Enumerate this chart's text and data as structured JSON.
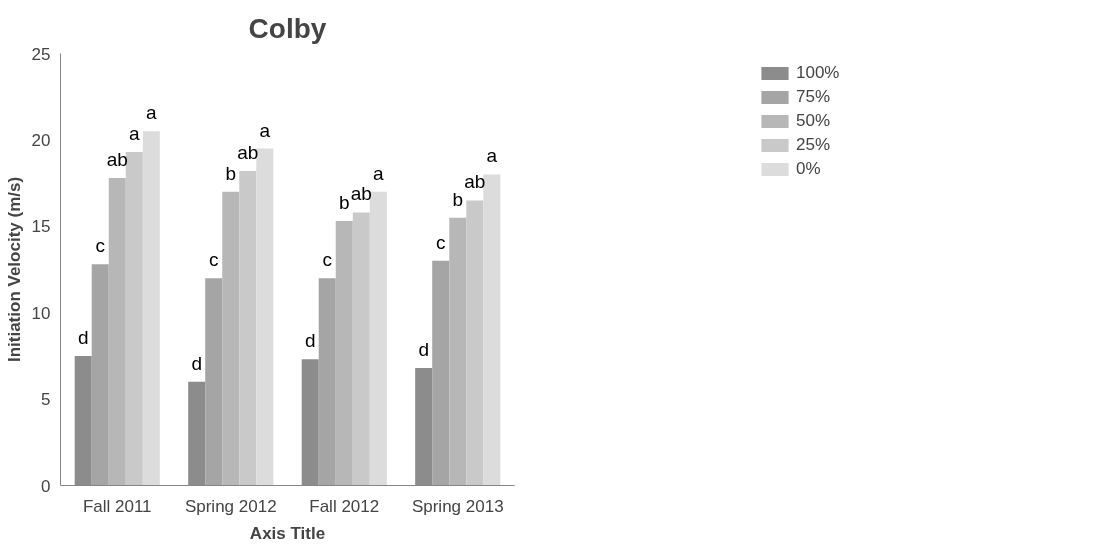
{
  "chart_data": {
    "type": "bar",
    "title": "Colby",
    "xlabel": "Axis Title",
    "ylabel": "Initiation Velocity (m/s)",
    "categories": [
      "Fall 2011",
      "Spring 2012",
      "Fall 2012",
      "Spring 2013"
    ],
    "series": [
      {
        "name": "100%",
        "color": "#8c8c8c",
        "values": [
          7.5,
          6.0,
          7.3,
          6.8
        ],
        "value_labels": [
          "d",
          "d",
          "d",
          "d"
        ]
      },
      {
        "name": "75%",
        "color": "#a5a5a5",
        "values": [
          12.8,
          12.0,
          12.0,
          13.0
        ],
        "value_labels": [
          "c",
          "c",
          "c",
          "c"
        ]
      },
      {
        "name": "50%",
        "color": "#b7b7b7",
        "values": [
          17.8,
          17.0,
          15.3,
          15.5
        ],
        "value_labels": [
          "ab",
          "b",
          "b",
          "b"
        ]
      },
      {
        "name": "25%",
        "color": "#c9c9c9",
        "values": [
          19.3,
          18.2,
          15.8,
          16.5
        ],
        "value_labels": [
          "a",
          "ab",
          "ab",
          "ab"
        ]
      },
      {
        "name": "0%",
        "color": "#dcdcdc",
        "values": [
          20.5,
          19.5,
          17.0,
          18.0
        ],
        "value_labels": [
          "a",
          "a",
          "a",
          "a"
        ]
      }
    ],
    "ylim": [
      0,
      25
    ],
    "yticks": [
      0,
      5,
      10,
      15,
      20,
      25
    ],
    "grid": false,
    "legend": "top right"
  }
}
